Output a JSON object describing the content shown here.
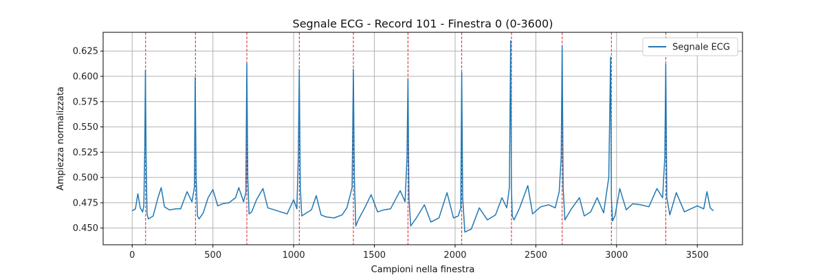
{
  "chart_data": {
    "type": "line",
    "title": "Segnale ECG - Record 101 - Finestra 0 (0-3600)",
    "xlabel": "Campioni nella finestra",
    "ylabel": "Ampiezza normalizzata",
    "xlim": [
      -180,
      3780
    ],
    "ylim": [
      0.4335,
      0.6435
    ],
    "xticks": [
      0,
      500,
      1000,
      1500,
      2000,
      2500,
      3000,
      3500
    ],
    "yticks": [
      0.45,
      0.475,
      0.5,
      0.525,
      0.55,
      0.575,
      0.6,
      0.625
    ],
    "ytick_labels": [
      "0.450",
      "0.475",
      "0.500",
      "0.525",
      "0.550",
      "0.575",
      "0.600",
      "0.625"
    ],
    "grid": true,
    "legend_position": "top-right",
    "series": [
      {
        "name": "Segnale ECG",
        "color": "#1f77b4",
        "x": [
          0,
          20,
          35,
          50,
          65,
          72,
          78,
          82,
          86,
          92,
          100,
          130,
          160,
          180,
          200,
          230,
          270,
          300,
          340,
          370,
          385,
          390,
          396,
          404,
          415,
          440,
          470,
          500,
          530,
          560,
          600,
          640,
          660,
          690,
          704,
          710,
          716,
          724,
          740,
          770,
          810,
          840,
          880,
          920,
          960,
          1000,
          1020,
          1029,
          1035,
          1041,
          1050,
          1080,
          1110,
          1140,
          1170,
          1200,
          1250,
          1300,
          1330,
          1362,
          1370,
          1376,
          1385,
          1400,
          1440,
          1480,
          1520,
          1560,
          1600,
          1660,
          1690,
          1702,
          1708,
          1714,
          1725,
          1760,
          1810,
          1850,
          1900,
          1950,
          1990,
          2020,
          2035,
          2041,
          2047,
          2060,
          2100,
          2150,
          2200,
          2250,
          2290,
          2320,
          2336,
          2344,
          2349,
          2354,
          2365,
          2400,
          2450,
          2480,
          2530,
          2580,
          2620,
          2645,
          2657,
          2663,
          2669,
          2680,
          2720,
          2770,
          2800,
          2840,
          2880,
          2920,
          2952,
          2963,
          2968,
          2975,
          2990,
          3020,
          3060,
          3100,
          3150,
          3200,
          3250,
          3285,
          3299,
          3305,
          3311,
          3330,
          3370,
          3420,
          3460,
          3500,
          3540,
          3560,
          3580,
          3600
        ],
        "y": [
          0.467,
          0.469,
          0.484,
          0.47,
          0.466,
          0.472,
          0.53,
          0.606,
          0.52,
          0.464,
          0.459,
          0.462,
          0.48,
          0.49,
          0.471,
          0.468,
          0.469,
          0.469,
          0.486,
          0.476,
          0.49,
          0.599,
          0.5,
          0.462,
          0.459,
          0.465,
          0.48,
          0.488,
          0.472,
          0.474,
          0.475,
          0.48,
          0.49,
          0.476,
          0.485,
          0.613,
          0.5,
          0.464,
          0.466,
          0.478,
          0.489,
          0.47,
          0.468,
          0.466,
          0.464,
          0.478,
          0.469,
          0.52,
          0.607,
          0.49,
          0.462,
          0.465,
          0.468,
          0.482,
          0.463,
          0.461,
          0.46,
          0.463,
          0.47,
          0.49,
          0.607,
          0.5,
          0.452,
          0.458,
          0.47,
          0.483,
          0.466,
          0.468,
          0.469,
          0.487,
          0.476,
          0.52,
          0.597,
          0.48,
          0.452,
          0.46,
          0.473,
          0.456,
          0.46,
          0.485,
          0.46,
          0.462,
          0.47,
          0.604,
          0.48,
          0.446,
          0.449,
          0.47,
          0.458,
          0.463,
          0.48,
          0.47,
          0.49,
          0.635,
          0.49,
          0.462,
          0.458,
          0.47,
          0.492,
          0.464,
          0.471,
          0.473,
          0.47,
          0.486,
          0.52,
          0.63,
          0.49,
          0.458,
          0.469,
          0.48,
          0.462,
          0.466,
          0.48,
          0.465,
          0.5,
          0.619,
          0.48,
          0.457,
          0.462,
          0.489,
          0.468,
          0.474,
          0.473,
          0.471,
          0.489,
          0.48,
          0.52,
          0.612,
          0.48,
          0.463,
          0.485,
          0.466,
          0.469,
          0.472,
          0.469,
          0.486,
          0.47,
          0.467
        ]
      }
    ],
    "peak_markers": {
      "color": "#d62728",
      "style": "dashed",
      "x": [
        83,
        392,
        710,
        1035,
        1370,
        1708,
        2041,
        2349,
        2663,
        2968,
        3305
      ]
    }
  }
}
